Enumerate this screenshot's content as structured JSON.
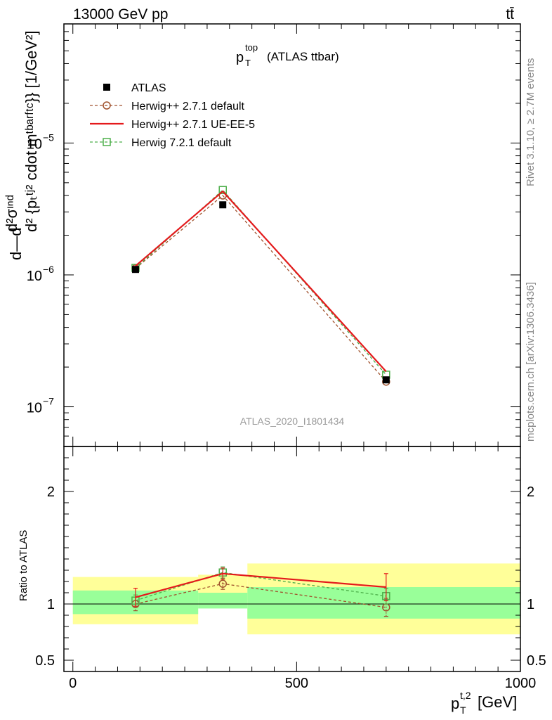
{
  "header": {
    "left": "13000 GeV pp",
    "right": "tt̄"
  },
  "side_labels": {
    "rivet": "Rivet 3.1.10, ≥ 2.7M events",
    "mcplots": "mcplots.cern.ch [arXiv:1306.3436]"
  },
  "watermark": "ATLAS_2020_I1801434",
  "chart_data": [
    {
      "type": "line",
      "panel": "main",
      "title": {
        "main": "p",
        "sup": "top",
        "sub": "T",
        "rest": "(ATLAS ttbar)"
      },
      "ylabel": "d¹d/σd d²σᶜᴵᵈ / d² {p_T^{t,2} cdot m^{tbar{t}}} [1/GeV²]",
      "ylabel_parts": {
        "left": "d—d",
        "frac_top": "d²σᶦⁿᵈ",
        "frac_bottom": "d² {pₜᵗʲ² cdot mᵗᵇᵃʳᶠᵗᶜ}} [1/GeV²]",
        "sigma": "σ"
      },
      "y_scale": "log",
      "ylim": [
        5e-08,
        8e-05
      ],
      "xlim": [
        -20,
        1000
      ],
      "y_ticks": [
        {
          "value": 1e-07,
          "label_base": "10",
          "label_exp": "−7"
        },
        {
          "value": 1e-06,
          "label_base": "10",
          "label_exp": "−6"
        },
        {
          "value": 1e-05,
          "label_base": "10",
          "label_exp": "−5"
        }
      ],
      "legend_position": "top-left",
      "series": [
        {
          "name": "ATLAS",
          "color": "#000000",
          "style": "marker-square-filled",
          "x": [
            140,
            335,
            700
          ],
          "y": [
            1.1e-06,
            3.4e-06,
            1.6e-07
          ]
        },
        {
          "name": "Herwig++ 2.7.1 default",
          "color": "#a0522d",
          "style": "dashed-circle-open",
          "x": [
            140,
            335,
            700
          ],
          "y": [
            1.12e-06,
            4e-06,
            1.55e-07
          ]
        },
        {
          "name": "Herwig++ 2.7.1 UE-EE-5",
          "color": "#e41a1c",
          "style": "solid",
          "x": [
            140,
            335,
            700
          ],
          "y": [
            1.17e-06,
            4.3e-06,
            1.85e-07
          ]
        },
        {
          "name": "Herwig 7.2.1 default",
          "color": "#4daf4a",
          "style": "dashed-square-open",
          "x": [
            140,
            335,
            700
          ],
          "y": [
            1.13e-06,
            4.4e-06,
            1.75e-07
          ]
        }
      ]
    },
    {
      "type": "line",
      "panel": "ratio",
      "ylabel": "Ratio to ATLAS",
      "xlabel": {
        "main": "p",
        "sub": "T",
        "sup": "t,2",
        "rest": "[GeV]"
      },
      "xlim": [
        -20,
        1000
      ],
      "ylim": [
        0.4,
        2.4
      ],
      "y_ticks": [
        {
          "value": 0.5,
          "label": "0.5"
        },
        {
          "value": 1,
          "label": "1"
        },
        {
          "value": 2,
          "label": "2"
        }
      ],
      "x_ticks": [
        {
          "value": 0,
          "label": "0"
        },
        {
          "value": 500,
          "label": "500"
        },
        {
          "value": 1000,
          "label": "1000"
        }
      ],
      "bands": [
        {
          "x0": 0,
          "x1": 280,
          "yellow": [
            0.82,
            1.24
          ],
          "green": [
            0.91,
            1.12
          ]
        },
        {
          "x0": 280,
          "x1": 390,
          "yellow": [
            1.04,
            1.26
          ],
          "green": [
            0.96,
            1.1
          ]
        },
        {
          "x0": 390,
          "x1": 1000,
          "yellow": [
            0.73,
            1.36
          ],
          "green": [
            0.87,
            1.15
          ]
        }
      ],
      "series": [
        {
          "name": "Herwig++ 2.7.1 default",
          "color": "#a0522d",
          "style": "dashed-circle-open",
          "x": [
            140,
            335,
            700
          ],
          "y": [
            1.0,
            1.18,
            0.97
          ],
          "err": [
            0.06,
            0.05,
            0.08
          ]
        },
        {
          "name": "Herwig++ 2.7.1 UE-EE-5",
          "color": "#e41a1c",
          "style": "solid",
          "x": [
            140,
            335,
            700
          ],
          "y": [
            1.06,
            1.27,
            1.15
          ],
          "err": [
            0.08,
            0.05,
            0.12
          ]
        },
        {
          "name": "Herwig 7.2.1 default",
          "color": "#4daf4a",
          "style": "dashed-square-open",
          "x": [
            140,
            335,
            700
          ],
          "y": [
            1.03,
            1.28,
            1.07
          ],
          "err": [
            0.05,
            0.05,
            0.07
          ]
        }
      ]
    }
  ]
}
